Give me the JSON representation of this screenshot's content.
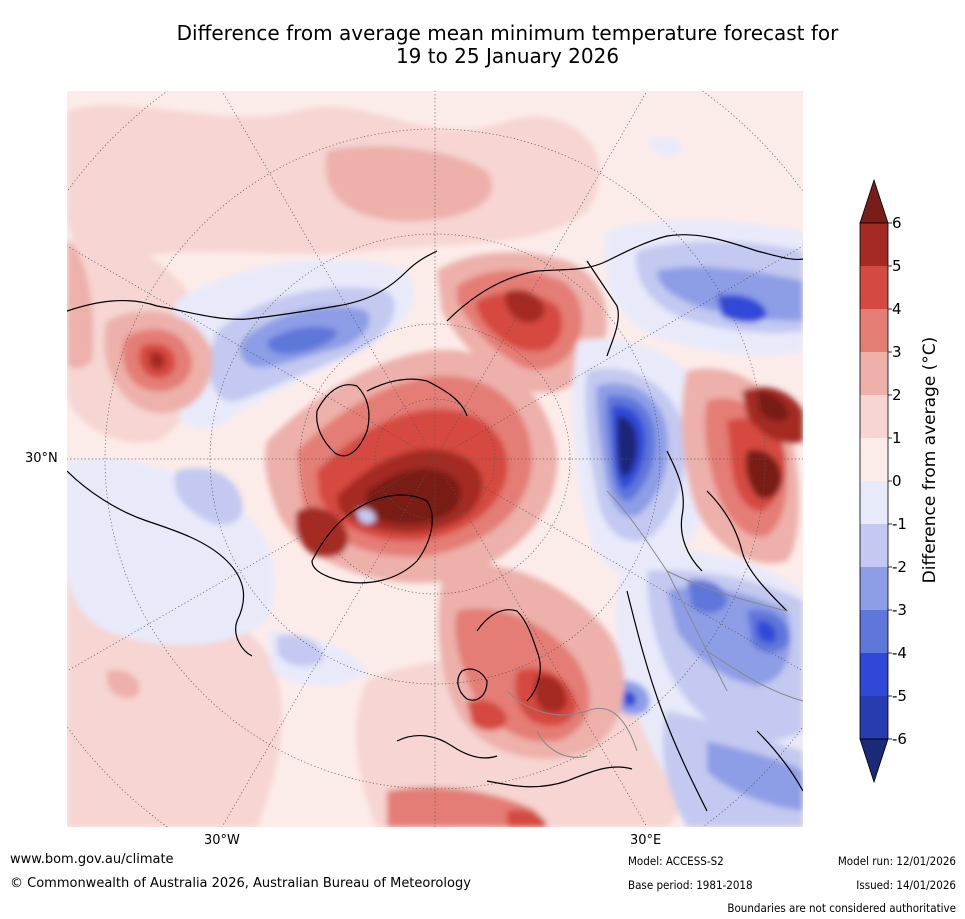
{
  "title": {
    "line1": "Difference from average mean minimum temperature forecast for",
    "line2": "19 to 25 January 2026"
  },
  "map": {
    "projection": "polar stereographic (north)",
    "labels": {
      "lat_30n": "30°N",
      "lon_30w": "30°W",
      "lon_30e": "30°E"
    }
  },
  "colorbar": {
    "label": "Difference from average (°C)",
    "ticks": [
      "6",
      "5",
      "4",
      "3",
      "2",
      "1",
      "0",
      "-1",
      "-2",
      "-3",
      "-4",
      "-5",
      "-6"
    ],
    "colors": {
      "over": "#7a1d18",
      "5_6": "#a52a24",
      "4_5": "#d54a40",
      "3_4": "#e47d74",
      "2_3": "#edb0aa",
      "1_2": "#f6d5d2",
      "0_1": "#fcece9",
      "m1_0": "#e8eafa",
      "m2_m1": "#c3c9f0",
      "m3_m2": "#8d9de6",
      "m4_m3": "#5f76da",
      "m5_m4": "#3048d8",
      "m6_m5": "#273cae",
      "under": "#1c2878"
    }
  },
  "footer": {
    "website": "www.bom.gov.au/climate",
    "copyright": "© Commonwealth of Australia 2026, Australian Bureau of Meteorology",
    "model": "Model: ACCESS-S2",
    "base_period": "Base period: 1981-2018",
    "model_run": "Model run: 12/01/2026",
    "issued": "Issued: 14/01/2026",
    "disclaimer": "Boundaries are not considered authoritative"
  }
}
